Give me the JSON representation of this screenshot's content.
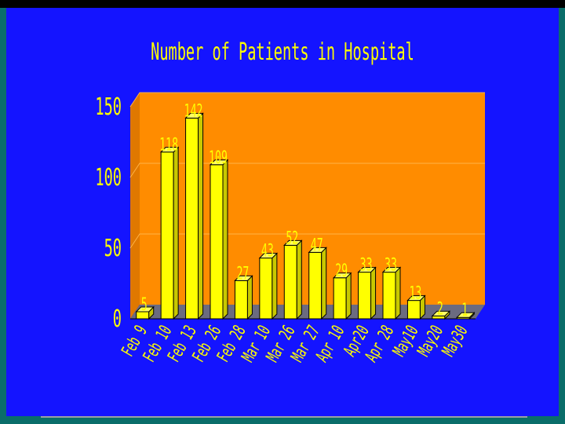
{
  "chart_data": {
    "type": "bar",
    "title": "Number of Patients in Hospital",
    "categories": [
      "Feb 9",
      "Feb 10",
      "Feb 13",
      "Feb 26",
      "Feb 28",
      "Mar 10",
      "Mar 26",
      "Mar 27",
      "Apr 10",
      "Apr20",
      "Apr 28",
      "May10",
      "May20",
      "May30"
    ],
    "values": [
      5,
      118,
      142,
      109,
      27,
      43,
      52,
      47,
      29,
      33,
      33,
      13,
      2,
      1
    ],
    "ylim": [
      0,
      150
    ],
    "yticks": [
      0,
      50,
      100,
      150
    ],
    "grid": true,
    "colors": {
      "background": "#1414ff",
      "plot_wall": "#ff8c00",
      "floor": "#6b6b80",
      "bar": "#ffff00",
      "text": "#ffff00"
    }
  }
}
